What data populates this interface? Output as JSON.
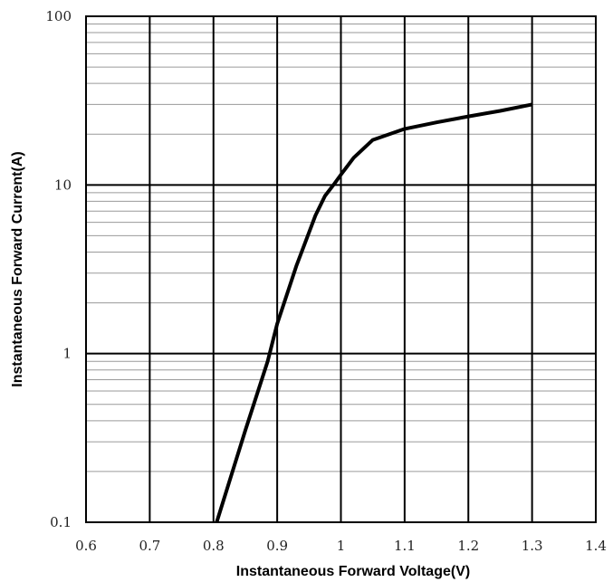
{
  "chart_data": {
    "type": "line",
    "xlabel": "Instantaneous Forward Voltage(V)",
    "ylabel": "Instantaneous Forward Current(A)",
    "xlim": [
      0.6,
      1.4
    ],
    "ylim": [
      0.1,
      100
    ],
    "y_scale": "log",
    "grid": true,
    "x_tick_labels": [
      "0.6",
      "0.7",
      "0.8",
      "0.9",
      "1",
      "1.1",
      "1.2",
      "1.3",
      "1.4"
    ],
    "y_tick_labels": [
      "0.1",
      "1",
      "10",
      "100"
    ],
    "series": [
      {
        "x": [
          0.805,
          0.85,
          0.885,
          0.9,
          0.93,
          0.96,
          0.975,
          0.99,
          1.0,
          1.02,
          1.05,
          1.1,
          1.15,
          1.2,
          1.25,
          1.3
        ],
        "y": [
          0.1,
          0.35,
          0.9,
          1.5,
          3.3,
          6.6,
          8.6,
          10.2,
          11.5,
          14.5,
          18.5,
          21.5,
          23.5,
          25.5,
          27.5,
          30
        ],
        "color": "#000000"
      }
    ]
  }
}
